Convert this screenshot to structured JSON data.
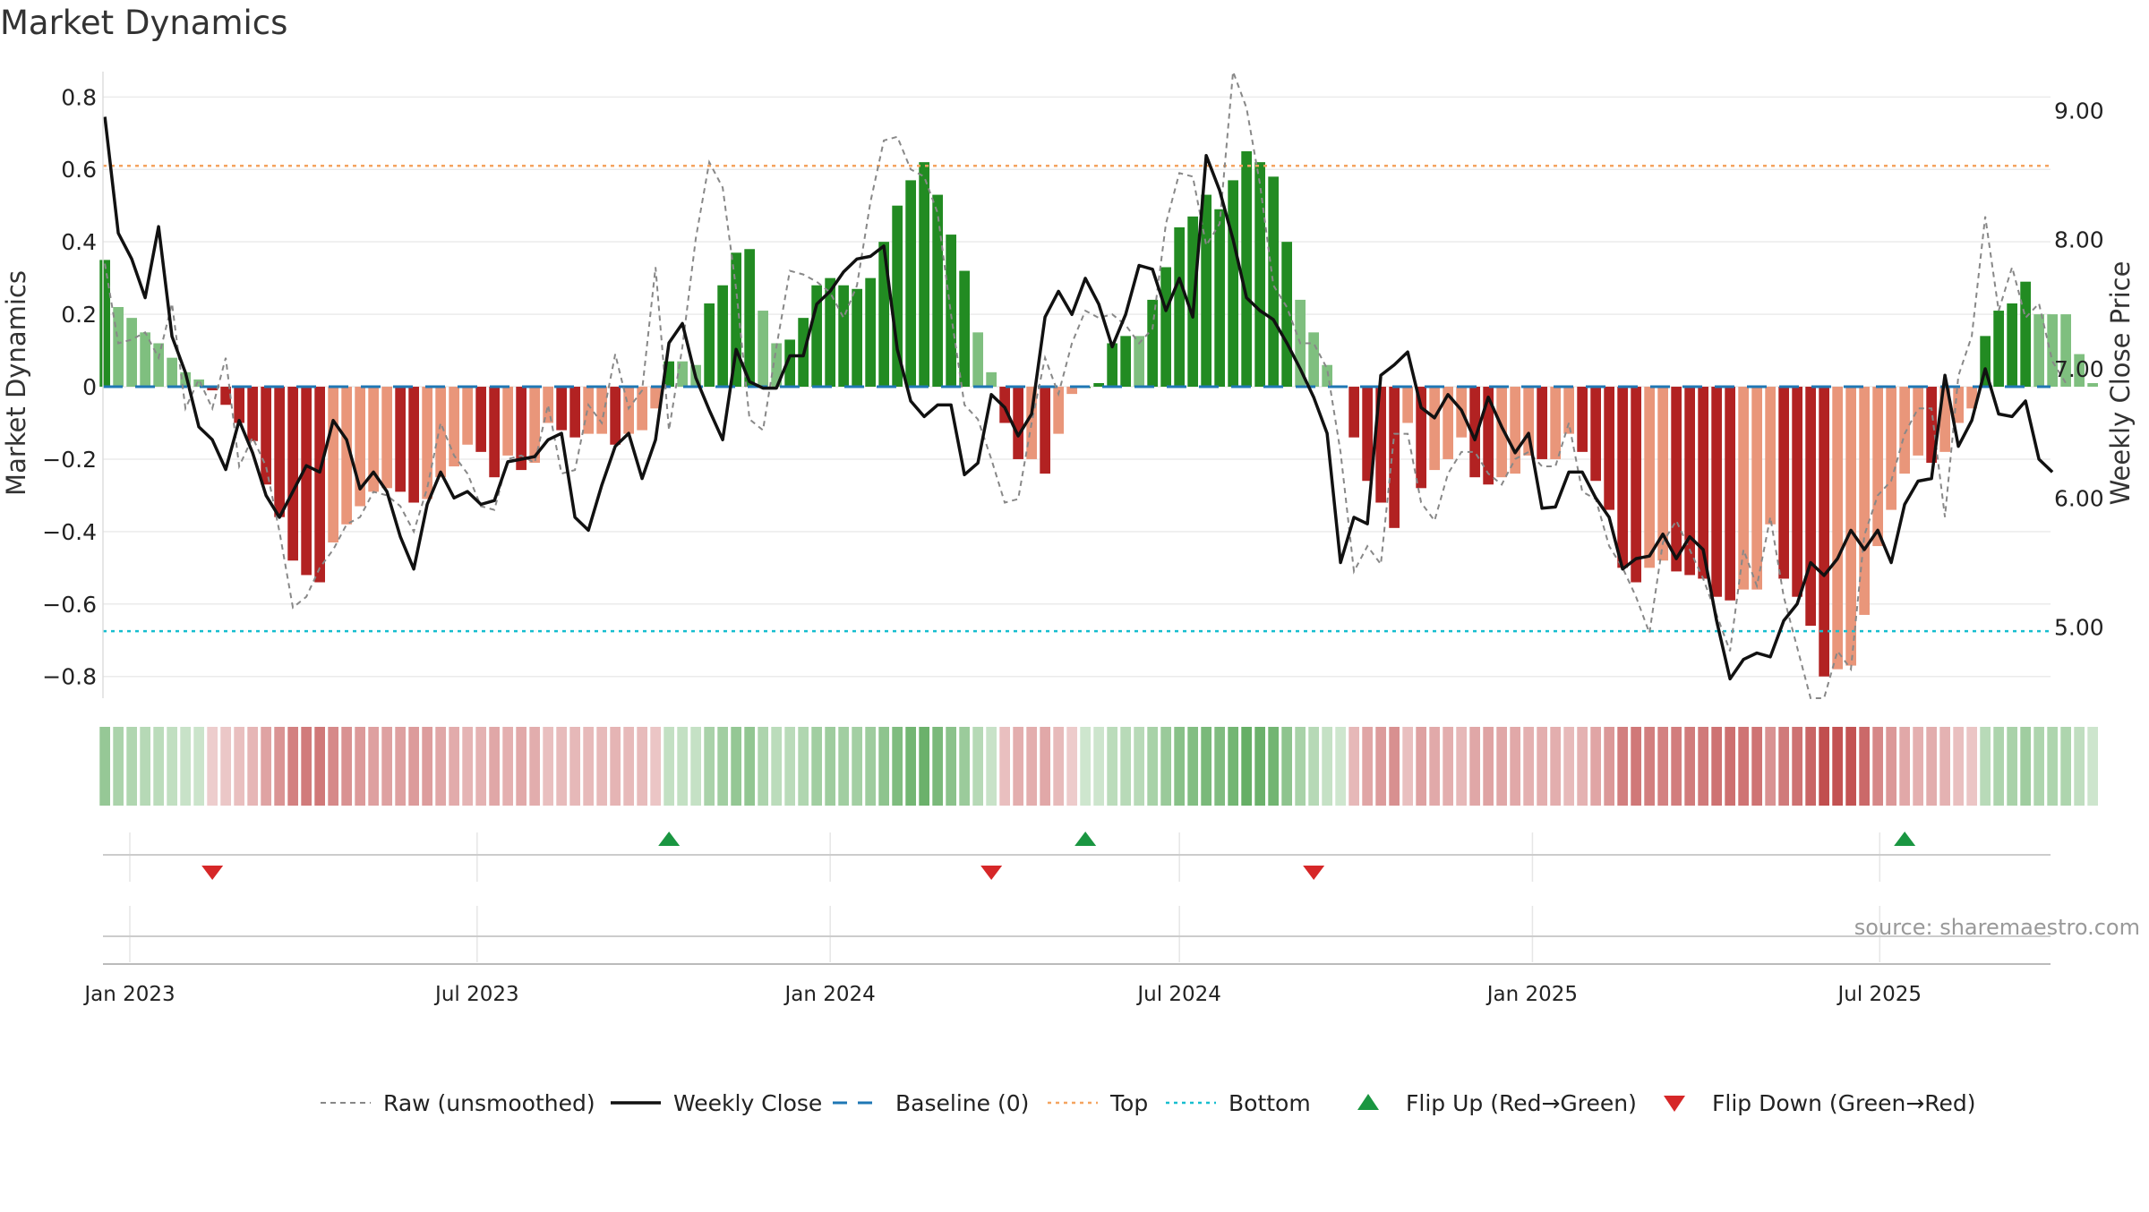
{
  "title": "Market Dynamics",
  "source_label": "source: sharemaestro.com",
  "colors": {
    "strong_green": "#228b22",
    "light_green": "#7fbf7f",
    "strong_red": "#b22222",
    "light_red": "#e9967a",
    "close_line": "#111111",
    "raw_line": "#888888",
    "baseline": "#1f77b4",
    "top_line": "#f4a460",
    "bottom_line": "#17becf",
    "flip_up": "#1a9641",
    "flip_down": "#d62728"
  },
  "chart_data": {
    "type": "bar",
    "title": "Market Dynamics",
    "ylabel": "Market Dynamics",
    "y2label": "Weekly Close Price",
    "ylim": [
      -0.86,
      0.87
    ],
    "y2lim": [
      4.45,
      9.3
    ],
    "yticks": [
      0.8,
      0.6,
      0.4,
      0.2,
      0,
      -0.2,
      -0.4,
      -0.6,
      -0.8
    ],
    "ytick_labels": [
      "0.8",
      "0.6",
      "0.4",
      "0.2",
      "0",
      "−0.2",
      "−0.4",
      "−0.6",
      "−0.8"
    ],
    "y2ticks": [
      9.0,
      8.0,
      7.0,
      6.0,
      5.0
    ],
    "y2tick_labels": [
      "9.00",
      "8.00",
      "7.00",
      "6.00",
      "5.00"
    ],
    "x_start": "2022-12-18",
    "x_end": "2025-09-28",
    "xticks": [
      {
        "date": "2023-01-01",
        "label": "Jan 2023"
      },
      {
        "date": "2023-07-01",
        "label": "Jul 2023"
      },
      {
        "date": "2024-01-01",
        "label": "Jan 2024"
      },
      {
        "date": "2024-07-01",
        "label": "Jul 2024"
      },
      {
        "date": "2025-01-01",
        "label": "Jan 2025"
      },
      {
        "date": "2025-07-01",
        "label": "Jul 2025"
      }
    ],
    "first_week": "2022-12-19",
    "weeks": 141,
    "dynamics": [
      0.35,
      0.22,
      0.19,
      0.15,
      0.12,
      0.08,
      0.04,
      0.02,
      -0.01,
      -0.05,
      -0.1,
      -0.15,
      -0.27,
      -0.36,
      -0.48,
      -0.52,
      -0.54,
      -0.43,
      -0.38,
      -0.33,
      -0.29,
      -0.28,
      -0.29,
      -0.32,
      -0.31,
      -0.25,
      -0.22,
      -0.16,
      -0.18,
      -0.25,
      -0.19,
      -0.23,
      -0.21,
      -0.1,
      -0.12,
      -0.14,
      -0.13,
      -0.13,
      -0.16,
      -0.13,
      -0.12,
      -0.06,
      0.07,
      0.07,
      0.06,
      0.23,
      0.28,
      0.37,
      0.38,
      0.21,
      0.12,
      0.13,
      0.19,
      0.28,
      0.3,
      0.28,
      0.27,
      0.3,
      0.4,
      0.5,
      0.57,
      0.62,
      0.53,
      0.42,
      0.32,
      0.15,
      0.04,
      -0.1,
      -0.2,
      -0.2,
      -0.24,
      -0.13,
      -0.02,
      0.0,
      0.01,
      0.12,
      0.14,
      0.14,
      0.24,
      0.33,
      0.44,
      0.47,
      0.53,
      0.49,
      0.57,
      0.65,
      0.62,
      0.58,
      0.4,
      0.24,
      0.15,
      0.06,
      0.0,
      -0.14,
      -0.26,
      -0.32,
      -0.39,
      -0.1,
      -0.28,
      -0.23,
      -0.2,
      -0.14,
      -0.25,
      -0.27,
      -0.25,
      -0.24,
      -0.19,
      -0.2,
      -0.2,
      -0.13,
      -0.18,
      -0.26,
      -0.34,
      -0.5,
      -0.54,
      -0.5,
      -0.48,
      -0.51,
      -0.52,
      -0.53,
      -0.58,
      -0.59,
      -0.56,
      -0.56,
      -0.38,
      -0.53,
      -0.58,
      -0.66,
      -0.8,
      -0.78,
      -0.77,
      -0.63,
      -0.44,
      -0.34,
      -0.24,
      -0.19,
      -0.21,
      -0.18,
      -0.1,
      -0.06,
      0.14,
      0.21,
      0.23,
      0.29,
      0.2,
      0.2,
      0.2,
      0.09,
      0.01
    ],
    "raw": [
      0.34,
      0.12,
      0.13,
      0.15,
      0.08,
      0.23,
      -0.06,
      0.02,
      -0.06,
      0.08,
      -0.22,
      -0.14,
      -0.22,
      -0.4,
      -0.61,
      -0.58,
      -0.5,
      -0.45,
      -0.38,
      -0.36,
      -0.29,
      -0.3,
      -0.33,
      -0.4,
      -0.28,
      -0.1,
      -0.19,
      -0.24,
      -0.33,
      -0.34,
      -0.2,
      -0.19,
      -0.21,
      -0.05,
      -0.24,
      -0.23,
      -0.05,
      -0.1,
      0.09,
      -0.06,
      -0.01,
      0.33,
      -0.12,
      0.11,
      0.41,
      0.62,
      0.55,
      0.27,
      -0.09,
      -0.12,
      0.11,
      0.32,
      0.31,
      0.29,
      0.26,
      0.19,
      0.28,
      0.51,
      0.68,
      0.69,
      0.6,
      0.58,
      0.48,
      0.2,
      -0.05,
      -0.09,
      -0.2,
      -0.32,
      -0.31,
      -0.1,
      0.08,
      -0.02,
      0.12,
      0.21,
      0.19,
      0.2,
      0.17,
      0.12,
      0.16,
      0.45,
      0.59,
      0.58,
      0.39,
      0.45,
      0.87,
      0.77,
      0.56,
      0.28,
      0.22,
      0.12,
      0.12,
      0.05,
      -0.18,
      -0.51,
      -0.44,
      -0.49,
      -0.13,
      -0.13,
      -0.32,
      -0.37,
      -0.24,
      -0.18,
      -0.18,
      -0.24,
      -0.27,
      -0.2,
      -0.18,
      -0.22,
      -0.22,
      -0.1,
      -0.29,
      -0.31,
      -0.44,
      -0.5,
      -0.58,
      -0.68,
      -0.43,
      -0.37,
      -0.45,
      -0.53,
      -0.63,
      -0.73,
      -0.45,
      -0.55,
      -0.36,
      -0.58,
      -0.72,
      -0.86,
      -0.86,
      -0.73,
      -0.78,
      -0.41,
      -0.3,
      -0.26,
      -0.13,
      -0.06,
      -0.06,
      -0.36,
      0.03,
      0.14,
      0.47,
      0.21,
      0.33,
      0.19,
      0.23,
      0.07,
      0.01
    ],
    "close": [
      8.95,
      8.05,
      7.85,
      7.55,
      8.1,
      7.25,
      6.97,
      6.55,
      6.45,
      6.22,
      6.6,
      6.35,
      6.02,
      5.85,
      6.05,
      6.25,
      6.2,
      6.6,
      6.45,
      6.07,
      6.2,
      6.05,
      5.7,
      5.45,
      5.95,
      6.2,
      6.0,
      6.05,
      5.95,
      5.98,
      6.28,
      6.3,
      6.32,
      6.45,
      6.5,
      5.85,
      5.75,
      6.1,
      6.4,
      6.5,
      6.15,
      6.45,
      7.2,
      7.35,
      6.93,
      6.68,
      6.45,
      7.15,
      6.9,
      6.85,
      6.85,
      7.1,
      7.1,
      7.5,
      7.6,
      7.75,
      7.85,
      7.87,
      7.95,
      7.15,
      6.75,
      6.63,
      6.72,
      6.72,
      6.18,
      6.27,
      6.8,
      6.7,
      6.48,
      6.65,
      7.4,
      7.6,
      7.42,
      7.7,
      7.5,
      7.17,
      7.42,
      7.8,
      7.77,
      7.45,
      7.7,
      7.4,
      8.65,
      8.38,
      8.0,
      7.55,
      7.45,
      7.38,
      7.2,
      7.0,
      6.78,
      6.5,
      5.5,
      5.85,
      5.8,
      6.95,
      7.03,
      7.13,
      6.7,
      6.62,
      6.8,
      6.68,
      6.45,
      6.78,
      6.55,
      6.35,
      6.5,
      5.92,
      5.93,
      6.2,
      6.2,
      6.0,
      5.85,
      5.45,
      5.53,
      5.55,
      5.72,
      5.53,
      5.7,
      5.6,
      5.05,
      4.6,
      4.75,
      4.8,
      4.77,
      5.05,
      5.18,
      5.5,
      5.4,
      5.53,
      5.75,
      5.6,
      5.75,
      5.5,
      5.95,
      6.13,
      6.15,
      6.95,
      6.4,
      6.6,
      7.0,
      6.65,
      6.63,
      6.75,
      6.3,
      6.2
    ],
    "top_threshold": 0.61,
    "bottom_threshold": -0.675,
    "baseline": 0,
    "flip_up_dates": [
      "2023-10-09",
      "2024-05-13",
      "2025-07-14"
    ],
    "flip_down_dates": [
      "2023-02-13",
      "2024-03-25",
      "2024-09-09"
    ],
    "legend": [
      {
        "label": "Raw (unsmoothed)",
        "kind": "raw"
      },
      {
        "label": "Weekly Close",
        "kind": "close"
      },
      {
        "label": "Baseline (0)",
        "kind": "baseline"
      },
      {
        "label": "Top",
        "kind": "top"
      },
      {
        "label": "Bottom",
        "kind": "bottom"
      },
      {
        "label": "Flip Up (Red→Green)",
        "kind": "flipup"
      },
      {
        "label": "Flip Down (Green→Red)",
        "kind": "flipdown"
      }
    ]
  }
}
